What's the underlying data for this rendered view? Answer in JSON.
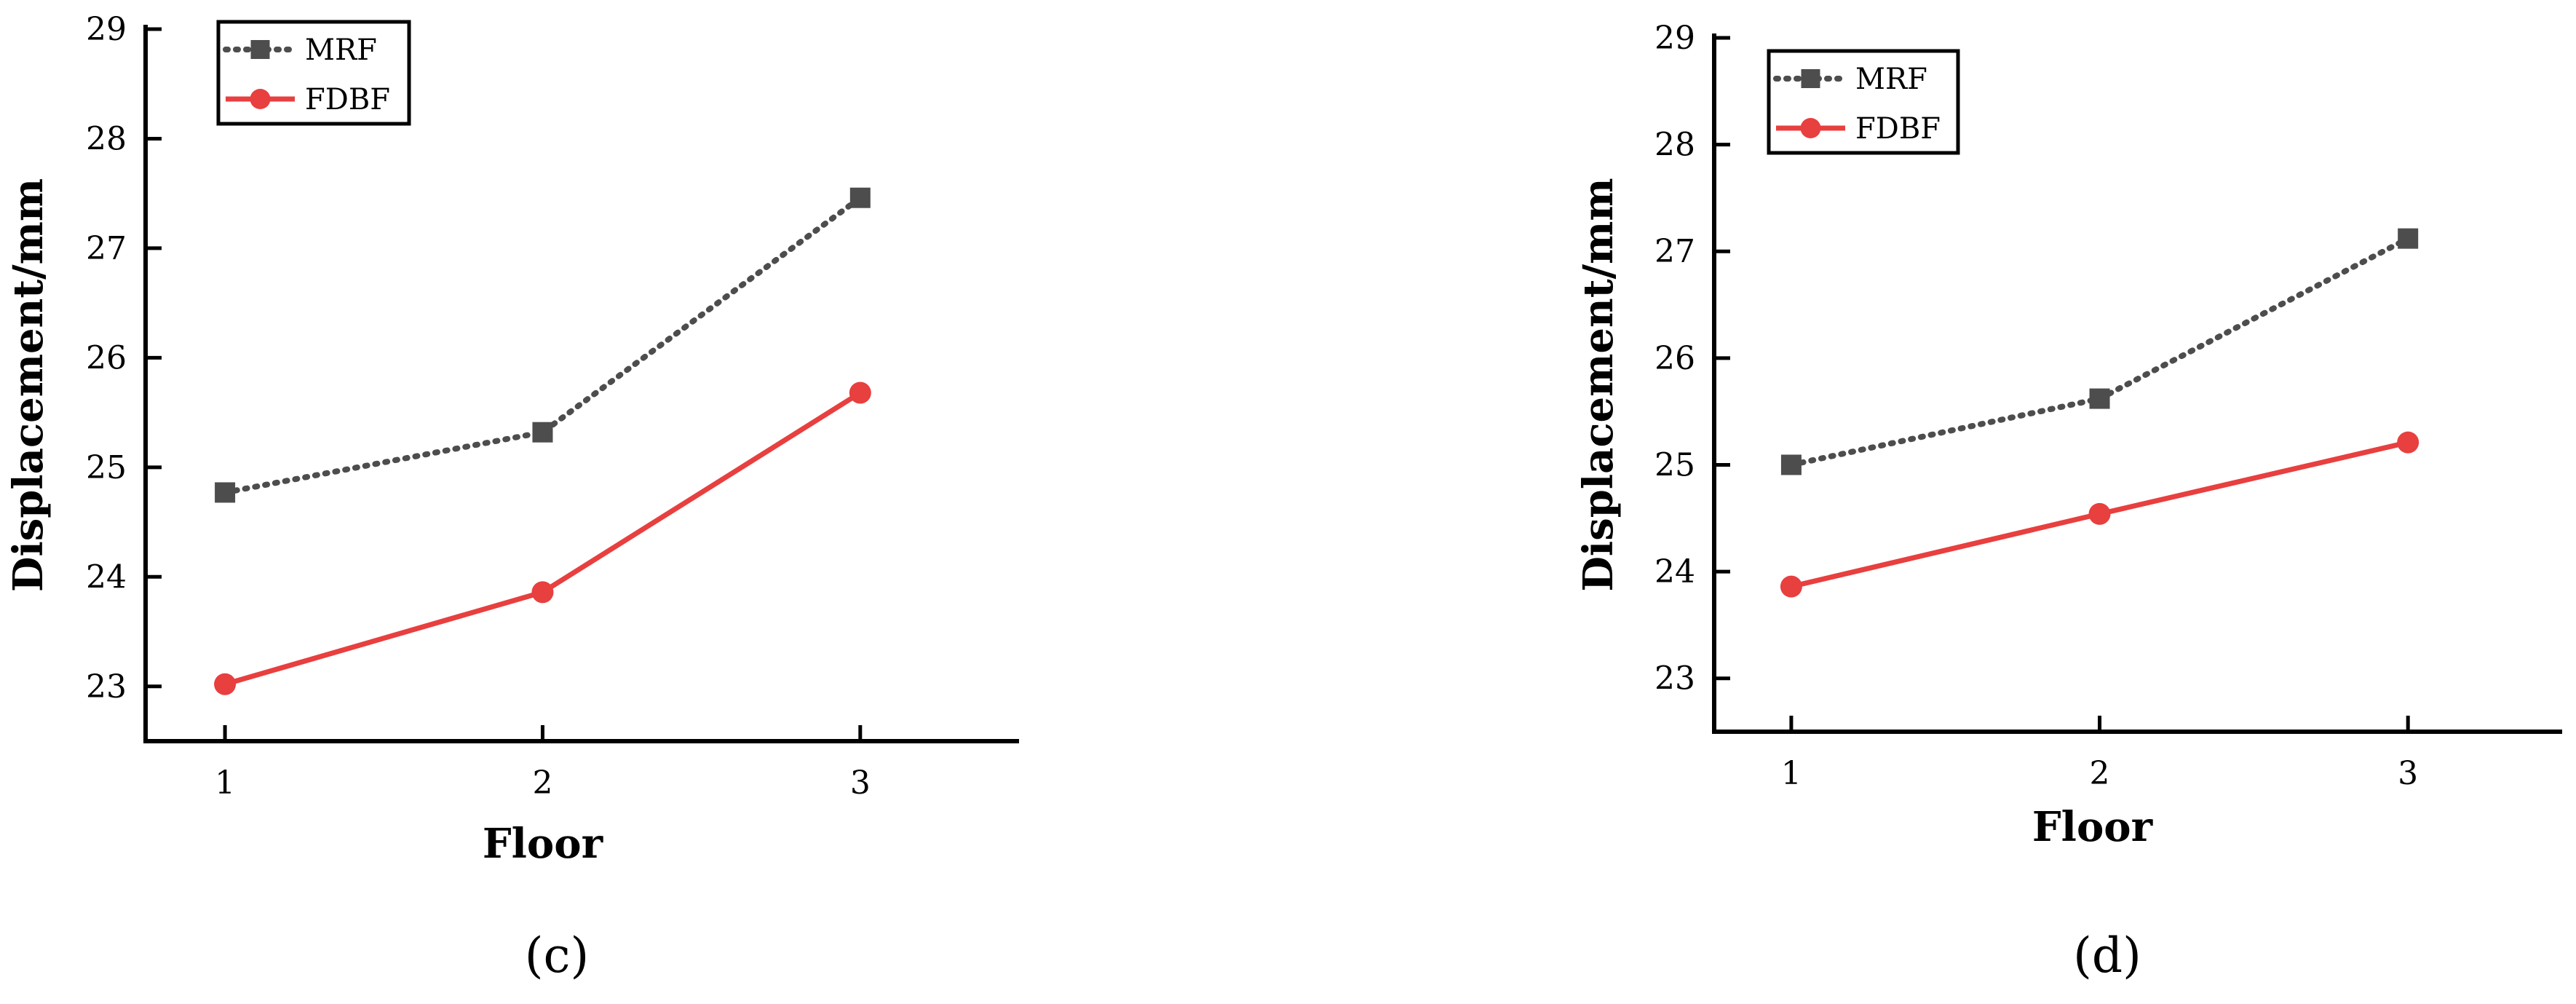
{
  "chart_data": [
    {
      "type": "line",
      "panel_label": "(c)",
      "xlabel": "Floor",
      "ylabel": "Displacement/mm",
      "x": [
        1,
        2,
        3
      ],
      "xticks": [
        "1",
        "2",
        "3"
      ],
      "xlim": [
        0.75,
        3.5
      ],
      "ylim": [
        22.5,
        29
      ],
      "yticks": [
        "23",
        "24",
        "25",
        "26",
        "27",
        "28",
        "29"
      ],
      "legend_position": "top-left",
      "grid": false,
      "series": [
        {
          "name": "MRF",
          "values": [
            24.77,
            25.32,
            27.46
          ],
          "color": "#4d4d4d",
          "line": "dotted",
          "marker": "square"
        },
        {
          "name": "FDBF",
          "values": [
            23.02,
            23.86,
            25.68
          ],
          "color": "#e83f3f",
          "line": "solid",
          "marker": "circle"
        }
      ]
    },
    {
      "type": "line",
      "panel_label": "(d)",
      "xlabel": "Floor",
      "ylabel": "Displacement/mm",
      "x": [
        1,
        2,
        3
      ],
      "xticks": [
        "1",
        "2",
        "3"
      ],
      "xlim": [
        0.75,
        3.5
      ],
      "ylim": [
        22.5,
        29
      ],
      "yticks": [
        "23",
        "24",
        "25",
        "26",
        "27",
        "28",
        "29"
      ],
      "legend_position": "top-left",
      "grid": false,
      "series": [
        {
          "name": "MRF",
          "values": [
            25.0,
            25.62,
            27.12
          ],
          "color": "#4d4d4d",
          "line": "dotted",
          "marker": "square"
        },
        {
          "name": "FDBF",
          "values": [
            23.86,
            24.54,
            25.21
          ],
          "color": "#e83f3f",
          "line": "solid",
          "marker": "circle"
        }
      ]
    }
  ]
}
